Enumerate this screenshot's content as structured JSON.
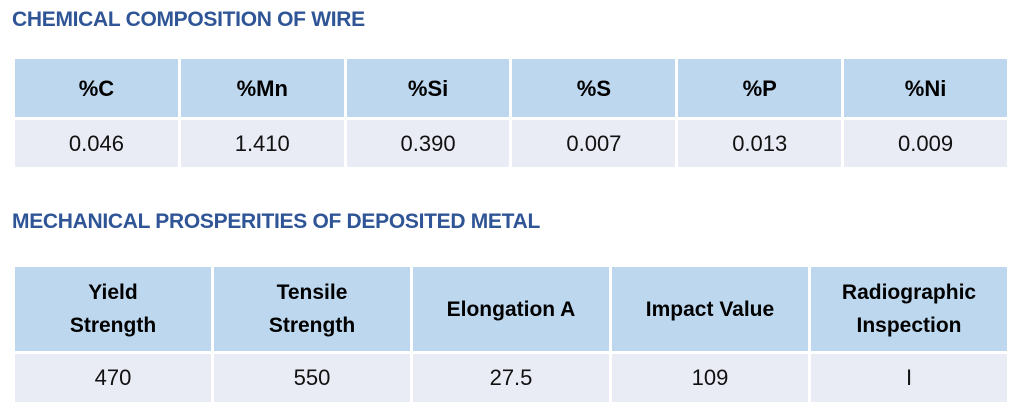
{
  "chemical": {
    "title": "CHEMICAL COMPOSITION OF WIRE",
    "headers": [
      "%C",
      "%Mn",
      "%Si",
      "%S",
      "%P",
      "%Ni"
    ],
    "values": [
      "0.046",
      "1.410",
      "0.390",
      "0.007",
      "0.013",
      "0.009"
    ]
  },
  "mechanical": {
    "title": "MECHANICAL PROSPERITIES OF DEPOSITED METAL",
    "headers": [
      [
        "Yield",
        "Strength"
      ],
      [
        "Tensile",
        "Strength"
      ],
      [
        "Elongation A",
        ""
      ],
      [
        "Impact Value",
        ""
      ],
      [
        "Radiographic",
        "Inspection"
      ]
    ],
    "values": [
      "470",
      "550",
      "27.5",
      "109",
      "I"
    ]
  }
}
